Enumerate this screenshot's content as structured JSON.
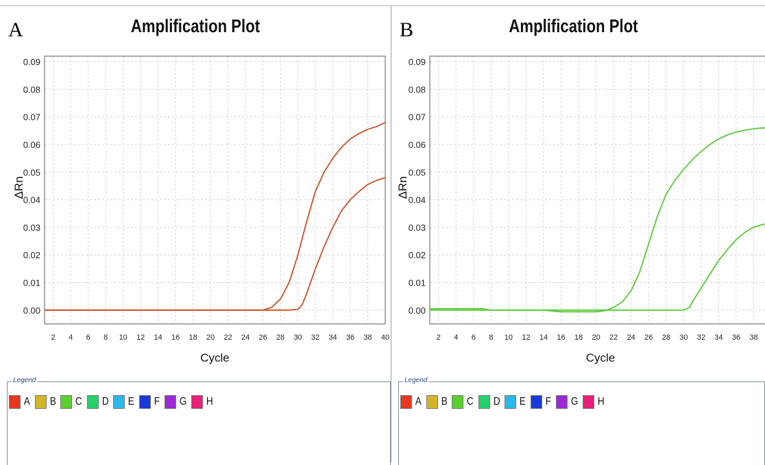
{
  "panels": [
    {
      "letter": "A",
      "title": "Amplification Plot",
      "legend_title": "Legend"
    },
    {
      "letter": "B",
      "title": "Amplification Plot",
      "legend_title": "Legend"
    }
  ],
  "legend_items": [
    {
      "label": "A",
      "color": "#e8371f"
    },
    {
      "label": "B",
      "color": "#d4b52a"
    },
    {
      "label": "C",
      "color": "#5bd02e"
    },
    {
      "label": "D",
      "color": "#25d06a"
    },
    {
      "label": "E",
      "color": "#2cb8e8"
    },
    {
      "label": "F",
      "color": "#1a3ad8"
    },
    {
      "label": "G",
      "color": "#9a2ad8"
    },
    {
      "label": "H",
      "color": "#e8207a"
    }
  ],
  "chart_data": [
    {
      "type": "line",
      "title": "Amplification Plot",
      "xlabel": "Cycle",
      "ylabel": "ΔRn",
      "xlim": [
        1,
        40
      ],
      "ylim": [
        -0.005,
        0.092
      ],
      "x_ticks": [
        2,
        4,
        6,
        8,
        10,
        12,
        14,
        16,
        18,
        20,
        22,
        24,
        26,
        28,
        30,
        32,
        34,
        36,
        38,
        40
      ],
      "y_ticks": [
        "0.00",
        "0.01",
        "0.02",
        "0.03",
        "0.04",
        "0.05",
        "0.06",
        "0.07",
        "0.08",
        "0.09"
      ],
      "grid": true,
      "line_color": "#c8502a",
      "series": [
        {
          "x": [
            1,
            26,
            27,
            28,
            29,
            30,
            31,
            32,
            33,
            34,
            35,
            36,
            37,
            38,
            39,
            40
          ],
          "values": [
            0,
            0,
            0.001,
            0.004,
            0.01,
            0.02,
            0.032,
            0.043,
            0.05,
            0.055,
            0.059,
            0.062,
            0.064,
            0.0655,
            0.0665,
            0.068
          ]
        },
        {
          "x": [
            1,
            29,
            30,
            30.5,
            31,
            32,
            33,
            34,
            35,
            36,
            37,
            38,
            39,
            40
          ],
          "values": [
            0,
            0,
            0.0003,
            0.002,
            0.006,
            0.015,
            0.023,
            0.03,
            0.036,
            0.04,
            0.043,
            0.0455,
            0.047,
            0.048
          ]
        }
      ]
    },
    {
      "type": "line",
      "title": "Amplification Plot",
      "xlabel": "Cycle",
      "ylabel": "ΔRn",
      "xlim": [
        1,
        40
      ],
      "ylim": [
        -0.005,
        0.092
      ],
      "x_ticks": [
        2,
        4,
        6,
        8,
        10,
        12,
        14,
        16,
        18,
        20,
        22,
        24,
        26,
        28,
        30,
        32,
        34,
        36,
        38
      ],
      "y_ticks": [
        "0.00",
        "0.01",
        "0.02",
        "0.03",
        "0.04",
        "0.05",
        "0.06",
        "0.07",
        "0.08",
        "0.09"
      ],
      "grid": true,
      "line_color": "#5cc83a",
      "series": [
        {
          "x": [
            1,
            7,
            8,
            14,
            16,
            20,
            21,
            22,
            23,
            24,
            25,
            26,
            27,
            28,
            29,
            30,
            31,
            32,
            33,
            34,
            35,
            36,
            37,
            38,
            39,
            40
          ],
          "values": [
            0.0005,
            0.0005,
            0,
            0,
            -0.0006,
            -0.0006,
            -0.0002,
            0.001,
            0.003,
            0.007,
            0.014,
            0.024,
            0.034,
            0.042,
            0.047,
            0.051,
            0.0545,
            0.0575,
            0.06,
            0.062,
            0.0635,
            0.0645,
            0.0652,
            0.0657,
            0.066,
            0.066
          ]
        },
        {
          "x": [
            1,
            30,
            30.7,
            31,
            32,
            33,
            34,
            35,
            36,
            37,
            38,
            39,
            40
          ],
          "values": [
            0,
            0,
            0.001,
            0.003,
            0.008,
            0.013,
            0.018,
            0.022,
            0.0255,
            0.0282,
            0.03,
            0.031,
            0.0315
          ]
        }
      ]
    }
  ]
}
